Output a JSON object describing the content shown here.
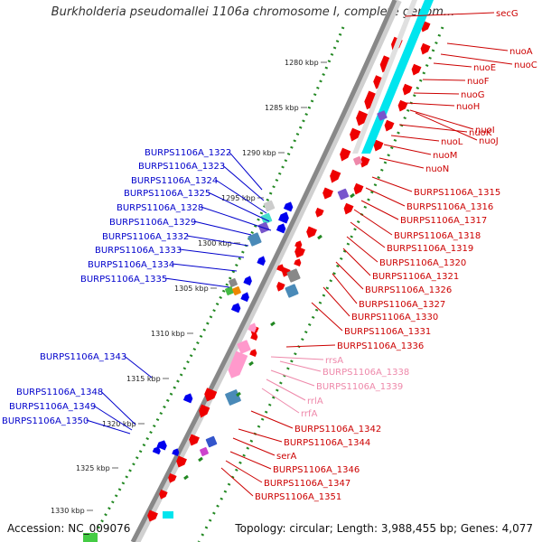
{
  "title": "Burkholderia pseudomallei 1106a chromosome I, complete genom...",
  "accession": "Accession: NC_009076",
  "summary": "Topology: circular; Length: 3,988,455 bp; Genes: 4,077",
  "scale_ticks": [
    "1280 kbp",
    "1285 kbp",
    "1290 kbp",
    "1295 kbp",
    "1300 kbp",
    "1305 kbp",
    "1310 kbp",
    "1315 kbp",
    "1320 kbp",
    "1325 kbp",
    "1330 kbp"
  ],
  "right_labels": [
    {
      "text": "secG",
      "color": "#cc0000"
    },
    {
      "text": "nuoA",
      "color": "#cc0000"
    },
    {
      "text": "nuoC",
      "color": "#cc0000"
    },
    {
      "text": "nuoE",
      "color": "#cc0000"
    },
    {
      "text": "nuoF",
      "color": "#cc0000"
    },
    {
      "text": "nuoG",
      "color": "#cc0000"
    },
    {
      "text": "nuoH",
      "color": "#cc0000"
    },
    {
      "text": "nuoI",
      "color": "#cc0000"
    },
    {
      "text": "nuoK",
      "color": "#cc0000"
    },
    {
      "text": "nuoJ",
      "color": "#cc0000"
    },
    {
      "text": "nuoL",
      "color": "#cc0000"
    },
    {
      "text": "nuoM",
      "color": "#cc0000"
    },
    {
      "text": "nuoN",
      "color": "#cc0000"
    },
    {
      "text": "BURPS1106A_1315",
      "color": "#cc0000"
    },
    {
      "text": "BURPS1106A_1316",
      "color": "#cc0000"
    },
    {
      "text": "BURPS1106A_1317",
      "color": "#cc0000"
    },
    {
      "text": "BURPS1106A_1318",
      "color": "#cc0000"
    },
    {
      "text": "BURPS1106A_1319",
      "color": "#cc0000"
    },
    {
      "text": "BURPS1106A_1320",
      "color": "#cc0000"
    },
    {
      "text": "BURPS1106A_1321",
      "color": "#cc0000"
    },
    {
      "text": "BURPS1106A_1326",
      "color": "#cc0000"
    },
    {
      "text": "BURPS1106A_1327",
      "color": "#cc0000"
    },
    {
      "text": "BURPS1106A_1330",
      "color": "#cc0000"
    },
    {
      "text": "BURPS1106A_1331",
      "color": "#cc0000"
    },
    {
      "text": "BURPS1106A_1336",
      "color": "#cc0000"
    },
    {
      "text": "rrsA",
      "color": "#ee88aa"
    },
    {
      "text": "BURPS1106A_1338",
      "color": "#ee88aa"
    },
    {
      "text": "BURPS1106A_1339",
      "color": "#ee88aa"
    },
    {
      "text": "rrlA",
      "color": "#ee88aa"
    },
    {
      "text": "rrfA",
      "color": "#ee88aa"
    },
    {
      "text": "BURPS1106A_1342",
      "color": "#cc0000"
    },
    {
      "text": "BURPS1106A_1344",
      "color": "#cc0000"
    },
    {
      "text": "serA",
      "color": "#cc0000"
    },
    {
      "text": "BURPS1106A_1346",
      "color": "#cc0000"
    },
    {
      "text": "BURPS1106A_1347",
      "color": "#cc0000"
    },
    {
      "text": "BURPS1106A_1351",
      "color": "#cc0000"
    }
  ],
  "left_labels": [
    {
      "text": "BURPS1106A_1322",
      "color": "#0000cc"
    },
    {
      "text": "BURPS1106A_1323",
      "color": "#0000cc"
    },
    {
      "text": "BURPS1106A_1324",
      "color": "#0000cc"
    },
    {
      "text": "BURPS1106A_1325",
      "color": "#0000cc"
    },
    {
      "text": "BURPS1106A_1328",
      "color": "#0000cc"
    },
    {
      "text": "BURPS1106A_1329",
      "color": "#0000cc"
    },
    {
      "text": "BURPS1106A_1332",
      "color": "#0000cc"
    },
    {
      "text": "BURPS1106A_1333",
      "color": "#0000cc"
    },
    {
      "text": "BURPS1106A_1334",
      "color": "#0000cc"
    },
    {
      "text": "BURPS1106A_1335",
      "color": "#0000cc"
    },
    {
      "text": "BURPS1106A_1343",
      "color": "#0000cc"
    },
    {
      "text": "BURPS1106A_1348",
      "color": "#0000cc"
    },
    {
      "text": "BURPS1106A_1349",
      "color": "#0000cc"
    },
    {
      "text": "BURPS1106A_1350",
      "color": "#0000cc"
    }
  ],
  "colors": {
    "forward_cds": "#ee0000",
    "reverse_cds": "#0000ee",
    "rrna": "#ff99cc",
    "backbone": "#888888",
    "gc_skew_dots": "#228822",
    "cyan_feature": "#00e5ee",
    "steel_feature": "#4a8ab8",
    "purple_feature": "#7755cc"
  }
}
